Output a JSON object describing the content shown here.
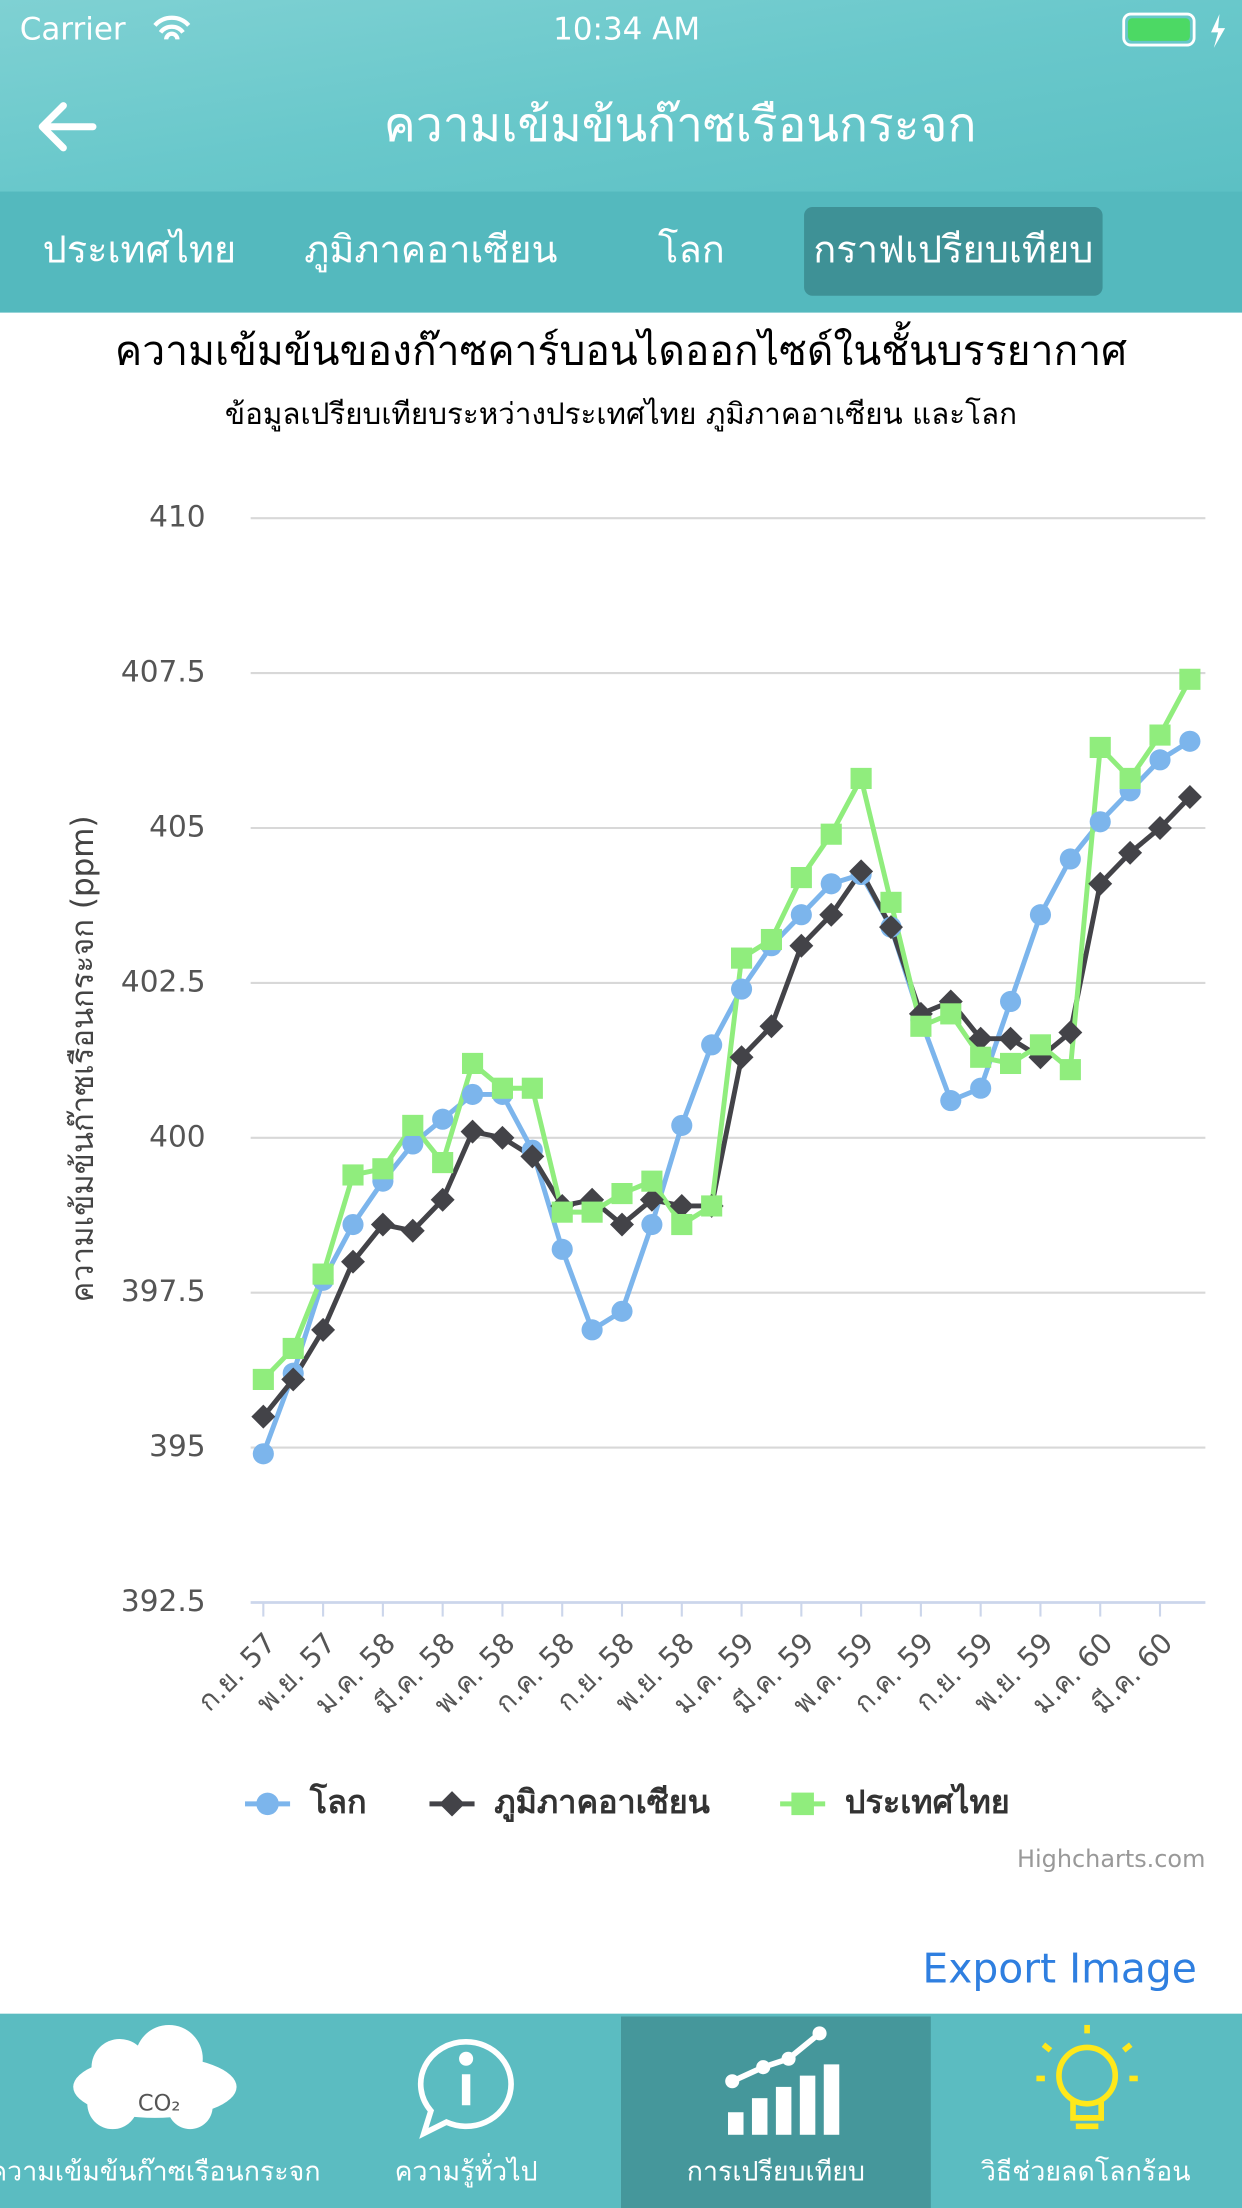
{
  "status_bar": {
    "carrier": "Carrier",
    "time": "10:34 AM"
  },
  "header": {
    "title": "ความเข้มข้นก๊าซเรือนกระจก"
  },
  "tabs": [
    "ประเทศไทย",
    "ภูมิภาคอาเซียน",
    "โลก",
    "กราฟเปรียบเทียบ"
  ],
  "chart_data": {
    "type": "line",
    "title": "ความเข้มข้นของก๊าซคาร์บอนไดออกไซด์ในชั้นบรรยากาศ",
    "subtitle": "ข้อมูลเปรียบเทียบระหว่างประเทศไทย ภูมิภาคอาเซียน และโลก",
    "y_label": "ความเข้มข้นก๊าซเรือนกระจก (ppm)",
    "categories": [
      "ก.ย. 57",
      null,
      "พ.ย. 57",
      null,
      "ม.ค. 58",
      null,
      "มี.ค. 58",
      null,
      "พ.ค. 58",
      null,
      "ก.ค. 58",
      null,
      "ก.ย. 58",
      null,
      "พ.ย. 58",
      null,
      "ม.ค. 59",
      null,
      "มี.ค. 59",
      null,
      "พ.ค. 59",
      null,
      "ก.ค. 59",
      null,
      "ก.ย. 59",
      null,
      "พ.ย. 59",
      null,
      "ม.ค. 60",
      null,
      "มี.ค. 60",
      null
    ],
    "series": [
      {
        "name": "โลก",
        "color": "#7cb5ec",
        "marker": "circle",
        "values": [
          394.9,
          396.2,
          397.7,
          398.6,
          399.3,
          399.9,
          400.3,
          400.7,
          400.7,
          399.8,
          398.2,
          396.9,
          397.2,
          398.6,
          400.2,
          401.5,
          402.4,
          403.1,
          403.6,
          404.1,
          404.25,
          403.4,
          401.9,
          400.6,
          400.8,
          402.2,
          403.6,
          404.5,
          405.1,
          405.6,
          406.1,
          406.4
        ]
      },
      {
        "name": "ภูมิภาคอาเซียน",
        "color": "#434348",
        "marker": "diamond",
        "values": [
          395.5,
          396.1,
          396.9,
          398.0,
          398.6,
          398.5,
          399.0,
          400.1,
          400.0,
          399.7,
          398.9,
          399.0,
          398.6,
          399.0,
          398.9,
          398.9,
          401.3,
          401.8,
          403.1,
          403.6,
          404.3,
          403.4,
          402.0,
          402.2,
          401.6,
          401.6,
          401.3,
          401.7,
          404.1,
          404.6,
          405.0,
          405.5
        ]
      },
      {
        "name": "ประเทศไทย",
        "color": "#90ed7d",
        "marker": "square",
        "values": [
          396.1,
          396.6,
          397.8,
          399.4,
          399.5,
          400.2,
          399.6,
          401.2,
          400.8,
          400.8,
          398.8,
          398.8,
          399.1,
          399.3,
          398.6,
          398.9,
          402.9,
          403.2,
          404.2,
          404.9,
          405.8,
          403.8,
          401.8,
          402.0,
          401.3,
          401.2,
          401.5,
          401.1,
          406.3,
          405.8,
          406.5,
          407.4
        ]
      }
    ],
    "ylim": [
      392.5,
      410
    ],
    "yticks": [
      392.5,
      395,
      397.5,
      400,
      402.5,
      405,
      407.5,
      410
    ],
    "grid": true,
    "legend": "bottom",
    "credits": "Highcharts.com"
  },
  "export_button": "Export Image",
  "co2_icon": "CO₂",
  "bottom_tabs": [
    "ความเข้มข้นก๊าซเรือนกระจก",
    "ความรู้ทั่วไป",
    "การเปรียบเทียบ",
    "วิธีช่วยลดโลกร้อน"
  ]
}
